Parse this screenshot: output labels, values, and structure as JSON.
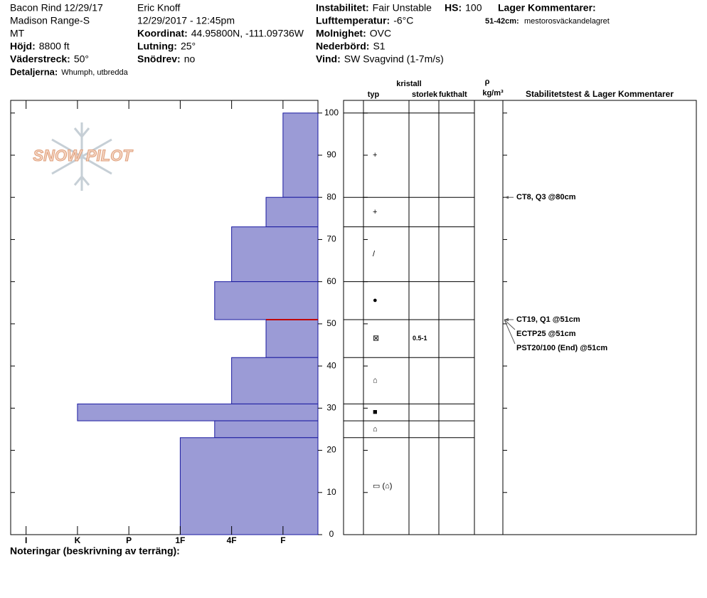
{
  "header": {
    "location": [
      "Bacon Rind 12/29/17",
      "Madison Range-S",
      "MT"
    ],
    "observer": "Eric Knoff",
    "datetime": "12/29/2017 - 12:45pm",
    "fields": [
      {
        "label": "Höjd:",
        "value": "8800 ft"
      },
      {
        "label": "Väderstreck:",
        "value": "50°"
      },
      {
        "label": "Detaljerna:",
        "value": "Whumph, utbredda"
      },
      {
        "label": "Koordinat:",
        "value": "44.95800N, -111.09736W"
      },
      {
        "label": "Lutning:",
        "value": "25°"
      },
      {
        "label": "Snödrev:",
        "value": "no"
      },
      {
        "label": "Instabilitet:",
        "value": "Fair Unstable"
      },
      {
        "label": "HS:",
        "value": "100"
      },
      {
        "label": "Lufttemperatur:",
        "value": "-6°C"
      },
      {
        "label": "Molnighet:",
        "value": "OVC"
      },
      {
        "label": "Nederbörd:",
        "value": "S1"
      },
      {
        "label": "Vind:",
        "value": "SW Svagvind (1-7m/s)"
      }
    ],
    "layer_comments_title": "Lager Kommentarer:",
    "layer_comments": [
      {
        "range": "51-42cm:",
        "text": "mestorosväckandelagret"
      }
    ]
  },
  "logo": "SNOW PILOT",
  "columns": {
    "type": "typ",
    "crystal": "kristall",
    "size": "storlek",
    "moisture": "fukthalt",
    "rho": "ρ",
    "density_unit": "kg/m³",
    "tests": "Stabilitetstest & Lager Kommentarer"
  },
  "notes_label": "Noteringar (beskrivning av terräng):",
  "chart_data": {
    "type": "snow-profile",
    "xlim": [
      6.3,
      0.32
    ],
    "xticks": [
      {
        "value": 6,
        "label": "I"
      },
      {
        "value": 5,
        "label": "K"
      },
      {
        "value": 4,
        "label": "P"
      },
      {
        "value": 3,
        "label": "1F"
      },
      {
        "value": 2,
        "label": "4F"
      },
      {
        "value": 1,
        "label": "F"
      }
    ],
    "ylim": [
      0,
      103
    ],
    "yticks": [
      0,
      10,
      20,
      30,
      40,
      50,
      60,
      70,
      80,
      90,
      100
    ],
    "color": "#9b9bd6",
    "layers": [
      {
        "top": 100,
        "bottom": 80,
        "hardness": 1,
        "crystal": "+"
      },
      {
        "top": 80,
        "bottom": 73,
        "hardness": 1.33,
        "crystal": "+"
      },
      {
        "top": 73,
        "bottom": 60,
        "hardness": 2,
        "crystal": "/"
      },
      {
        "top": 60,
        "bottom": 51,
        "hardness": 2.33,
        "crystal": "●"
      },
      {
        "top": 51,
        "bottom": 42,
        "hardness": 1.33,
        "crystal": "⊠",
        "size": "0.5-1"
      },
      {
        "top": 42,
        "bottom": 31,
        "hardness": 2,
        "crystal": "⌂"
      },
      {
        "top": 31,
        "bottom": 27,
        "hardness": 5,
        "crystal": "■"
      },
      {
        "top": 27,
        "bottom": 23,
        "hardness": 2.33,
        "crystal": "⌂"
      },
      {
        "top": 23,
        "bottom": 0,
        "hardness": 3,
        "crystal": "▭ (⌂)"
      }
    ],
    "tests": [
      {
        "label": "CT8, Q3 @80cm",
        "depth": 80
      },
      {
        "label": "CT19, Q1 @51cm",
        "depth": 51
      },
      {
        "label": "ECTP25 @51cm",
        "depth": 51
      },
      {
        "label": "PST20/100 (End) @51cm",
        "depth": 51
      }
    ]
  }
}
